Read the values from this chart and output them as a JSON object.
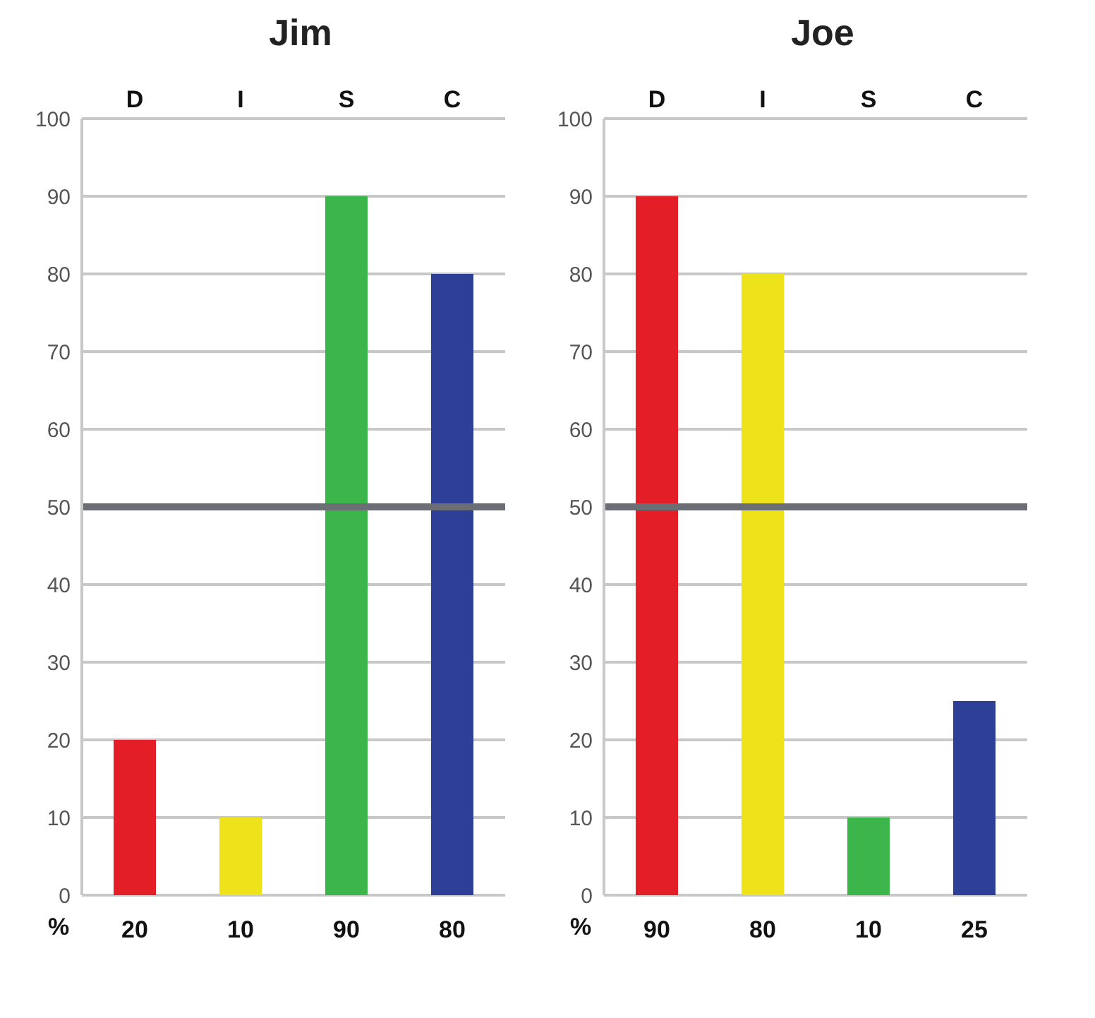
{
  "chart_data": [
    {
      "type": "bar",
      "title": "Jim",
      "categories": [
        "D",
        "I",
        "S",
        "C"
      ],
      "values": [
        20,
        10,
        90,
        80
      ],
      "colors": [
        "#e31e26",
        "#eee21b",
        "#3cb54a",
        "#2e3f98"
      ],
      "ylim": [
        0,
        100
      ],
      "yticks": [
        0,
        10,
        20,
        30,
        40,
        50,
        60,
        70,
        80,
        90,
        100
      ],
      "grid": "y",
      "ref_lines": [
        {
          "axis": "y",
          "value": 50,
          "color": "#6b6e75"
        }
      ],
      "data_labels": true,
      "annotations": [
        "%"
      ]
    },
    {
      "type": "bar",
      "title": "Joe",
      "categories": [
        "D",
        "I",
        "S",
        "C"
      ],
      "values": [
        90,
        80,
        10,
        25
      ],
      "colors": [
        "#e31e26",
        "#eee21b",
        "#3cb54a",
        "#2e3f98"
      ],
      "ylim": [
        0,
        100
      ],
      "yticks": [
        0,
        10,
        20,
        30,
        40,
        50,
        60,
        70,
        80,
        90,
        100
      ],
      "grid": "y",
      "ref_lines": [
        {
          "axis": "y",
          "value": 50,
          "color": "#6b6e75"
        }
      ],
      "data_labels": true,
      "annotations": [
        "%"
      ]
    }
  ]
}
